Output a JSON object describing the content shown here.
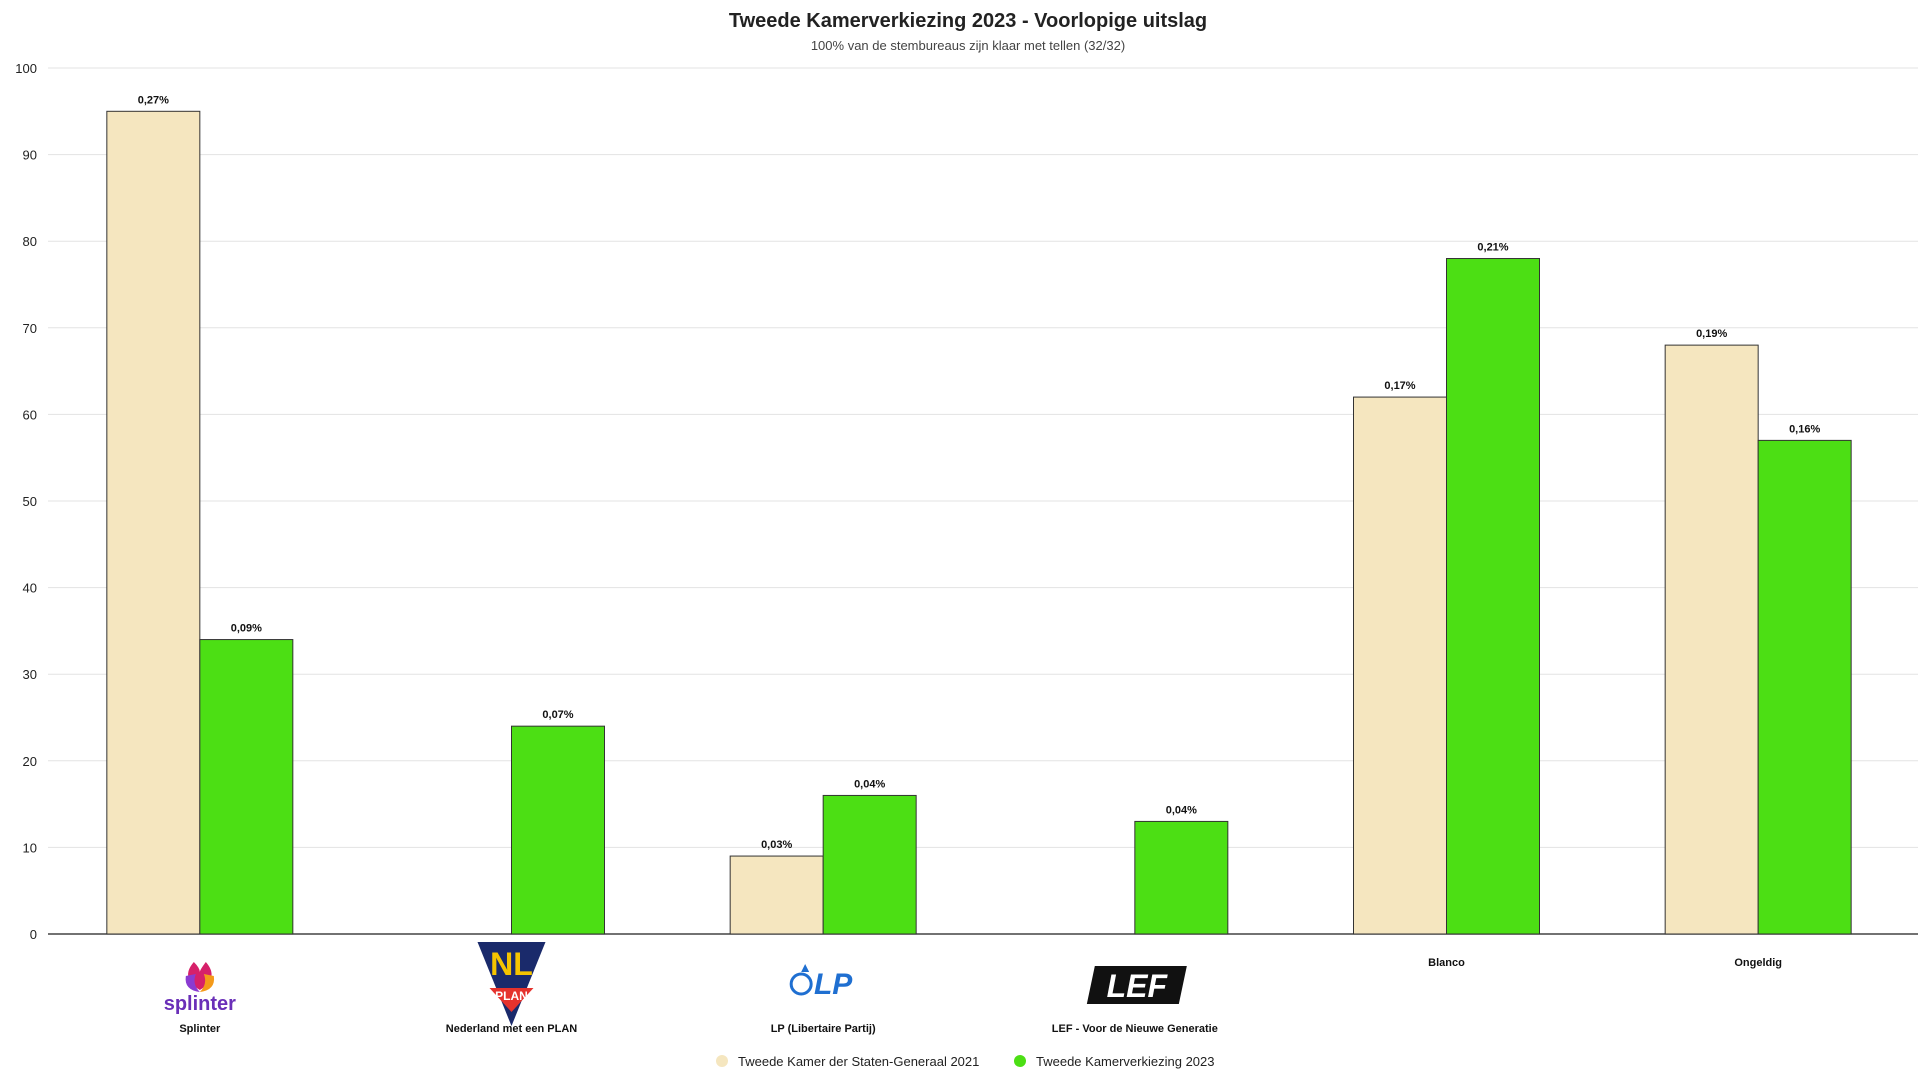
{
  "chart_data": {
    "type": "bar",
    "title": "Tweede Kamerverkiezing 2023 - Voorlopige uitslag",
    "subtitle": "100% van de stembureaus zijn klaar met tellen (32/32)",
    "xlabel": "",
    "ylabel": "",
    "ylim": [
      0,
      100
    ],
    "yticks": [
      0,
      10,
      20,
      30,
      40,
      50,
      60,
      70,
      80,
      90,
      100
    ],
    "grid": true,
    "legend_position": "bottom-center",
    "categories": [
      "Splinter",
      "Nederland met een PLAN",
      "LP (Libertaire Partij)",
      "LEF - Voor de Nieuwe Generatie",
      "Blanco",
      "Ongeldig"
    ],
    "category_logos": [
      "splinter-logo",
      "nl-plan-logo",
      "lp-logo",
      "lef-logo",
      "",
      ""
    ],
    "logo_texts": {
      "splinter": "splinter",
      "nl_top": "NL",
      "nl_bottom": "PLAN",
      "lp": "LP",
      "lef": "LEF"
    },
    "series": [
      {
        "name": "Tweede Kamer der Staten-Generaal 2021",
        "color": "#f5e6bf",
        "values": [
          95,
          null,
          9,
          null,
          62,
          68
        ],
        "labels": [
          "0,27%",
          "",
          "0,03%",
          "",
          "0,17%",
          "0,19%"
        ]
      },
      {
        "name": "Tweede Kamerverkiezing 2023",
        "color": "#4cdf14",
        "values": [
          34,
          24,
          16,
          13,
          78,
          57
        ],
        "labels": [
          "0,09%",
          "0,07%",
          "0,04%",
          "0,04%",
          "0,21%",
          "0,16%"
        ]
      }
    ]
  }
}
